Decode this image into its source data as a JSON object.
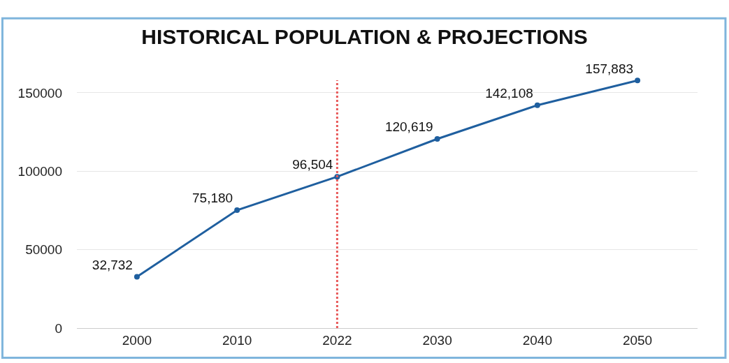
{
  "chart_data": {
    "type": "line",
    "title": "HISTORICAL POPULATION & PROJECTIONS",
    "categories": [
      "2000",
      "2010",
      "2022",
      "2030",
      "2040",
      "2050"
    ],
    "series": [
      {
        "color": "#1f5f9f",
        "values": [
          32732,
          75180,
          96504,
          120619,
          142108,
          157883
        ]
      }
    ],
    "value_labels": [
      "32,732",
      "75,180",
      "96,504",
      "120,619",
      "142,108",
      "157,883"
    ],
    "ylim": [
      0,
      158000
    ],
    "yticks": [
      0,
      50000,
      100000,
      150000
    ],
    "ref_lines": [
      {
        "axis": "x",
        "value": "2022",
        "color": "#e85a5a",
        "line_style": "dotted"
      }
    ],
    "grid": "y",
    "marker": "circle",
    "line_style": "solid",
    "legend": false
  }
}
